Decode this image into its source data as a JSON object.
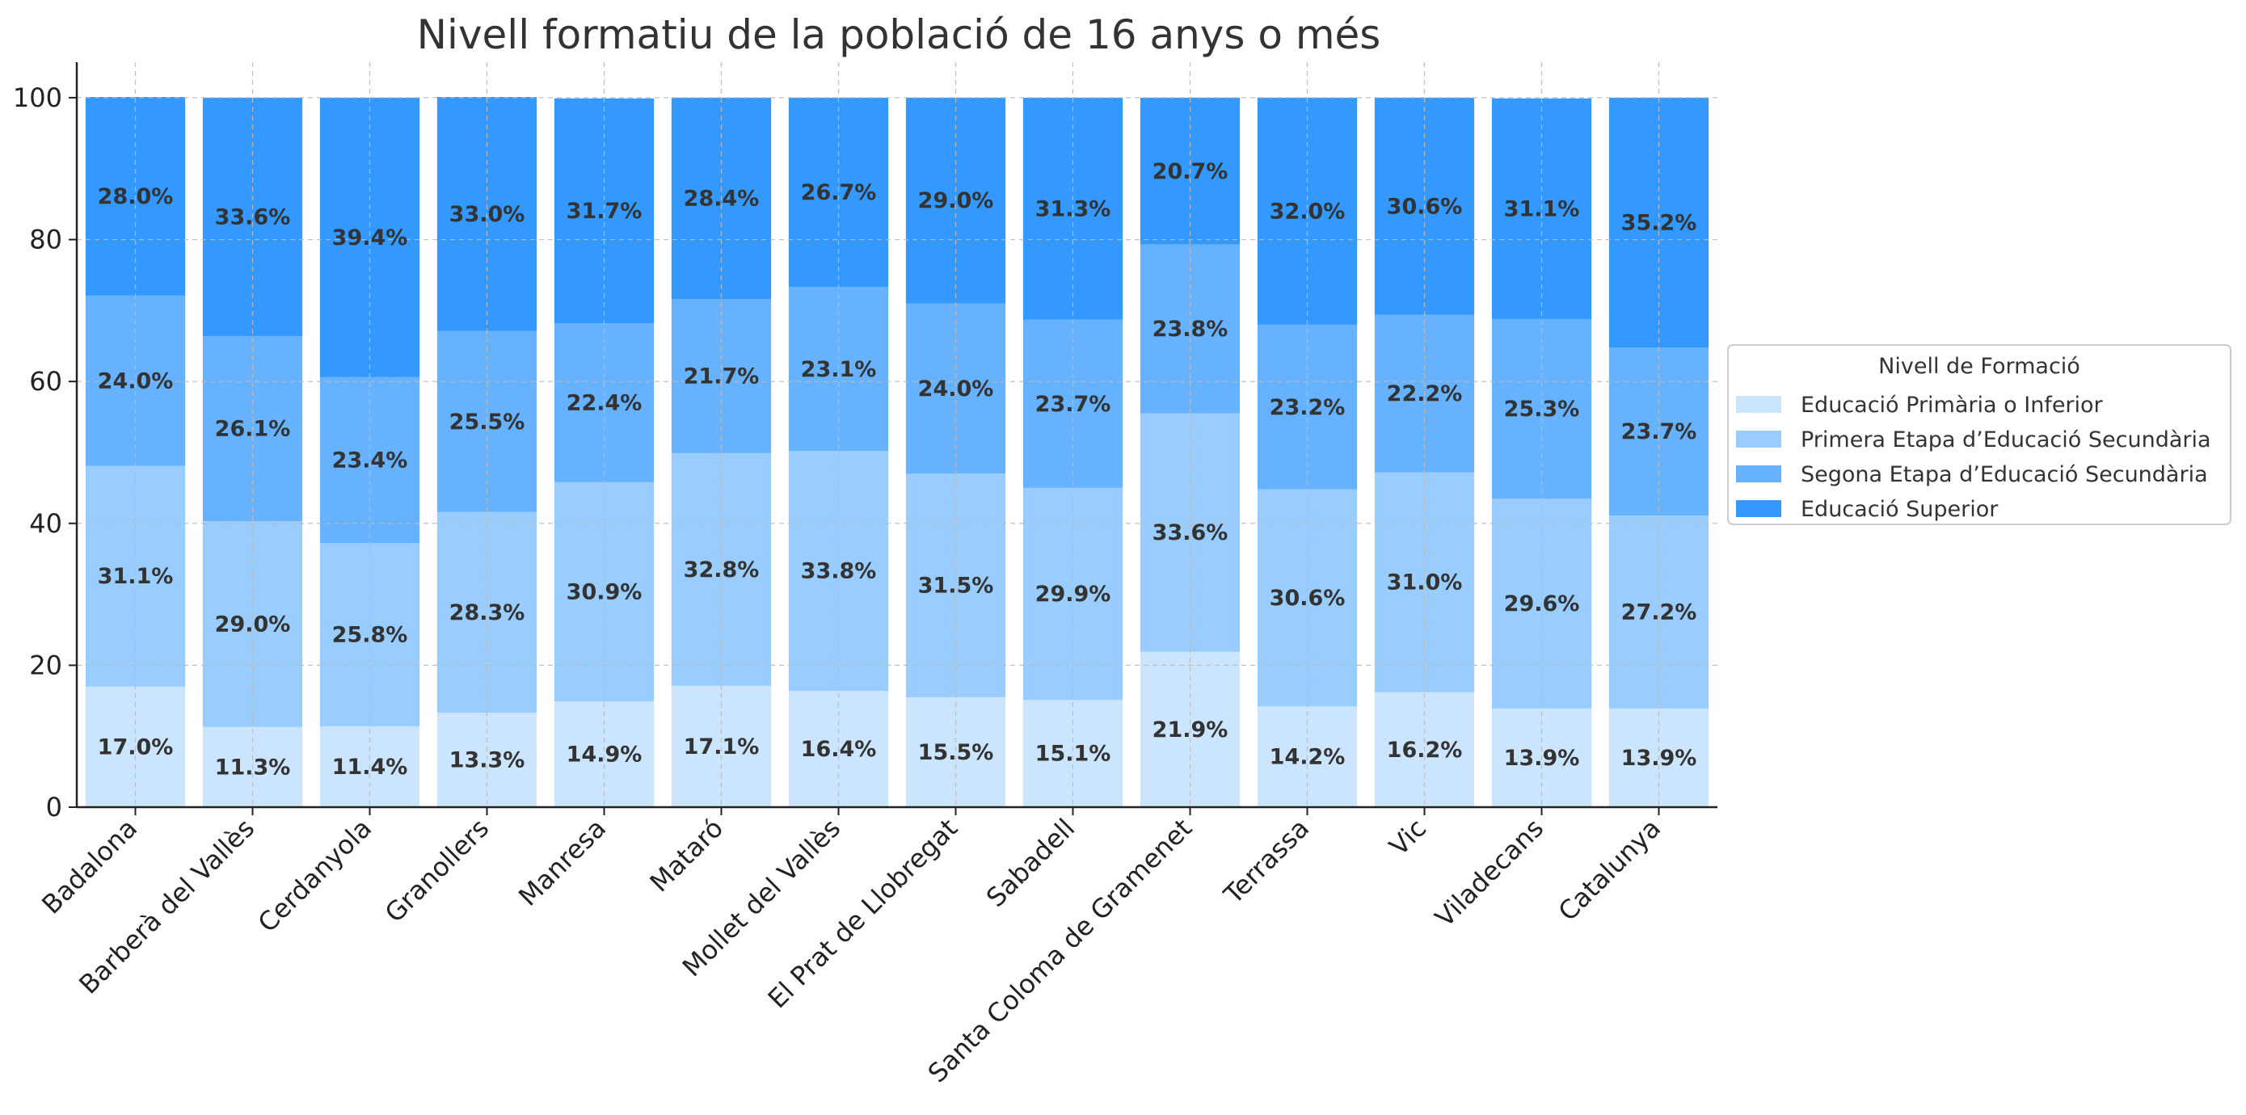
{
  "chart_data": {
    "type": "bar",
    "stacked": true,
    "title": "Nivell formatiu de la població de 16 anys o més",
    "xlabel": "",
    "ylabel": "",
    "ylim": [
      0,
      105
    ],
    "yticks": [
      0,
      20,
      40,
      60,
      80,
      100
    ],
    "grid": true,
    "legend": {
      "title": "Nivell de Formació",
      "placement": "center-right"
    },
    "categories": [
      "Badalona",
      "Barberà del Vallès",
      "Cerdanyola",
      "Granollers",
      "Manresa",
      "Mataró",
      "Mollet del Vallès",
      "El Prat de Llobregat",
      "Sabadell",
      "Santa Coloma de Gramenet",
      "Terrassa",
      "Vic",
      "Viladecans",
      "Catalunya"
    ],
    "series": [
      {
        "name": "Educació Primària o Inferior",
        "color": "#cce5ff",
        "values": [
          17.0,
          11.3,
          11.4,
          13.3,
          14.9,
          17.1,
          16.4,
          15.5,
          15.1,
          21.9,
          14.2,
          16.2,
          13.9,
          13.9
        ]
      },
      {
        "name": "Primera Etapa d’Educació Secundària",
        "color": "#99ccff",
        "values": [
          31.1,
          29.0,
          25.8,
          28.3,
          30.9,
          32.8,
          33.8,
          31.5,
          29.9,
          33.6,
          30.6,
          31.0,
          29.6,
          27.2
        ]
      },
      {
        "name": "Segona Etapa d’Educació Secundària",
        "color": "#66b2ff",
        "values": [
          24.0,
          26.1,
          23.4,
          25.5,
          22.4,
          21.7,
          23.1,
          24.0,
          23.7,
          23.8,
          23.2,
          22.2,
          25.3,
          23.7
        ]
      },
      {
        "name": "Educació Superior",
        "color": "#3399ff",
        "values": [
          28.0,
          33.6,
          39.4,
          33.0,
          31.7,
          28.4,
          26.7,
          29.0,
          31.3,
          20.7,
          32.0,
          30.6,
          31.1,
          35.2
        ]
      }
    ]
  }
}
